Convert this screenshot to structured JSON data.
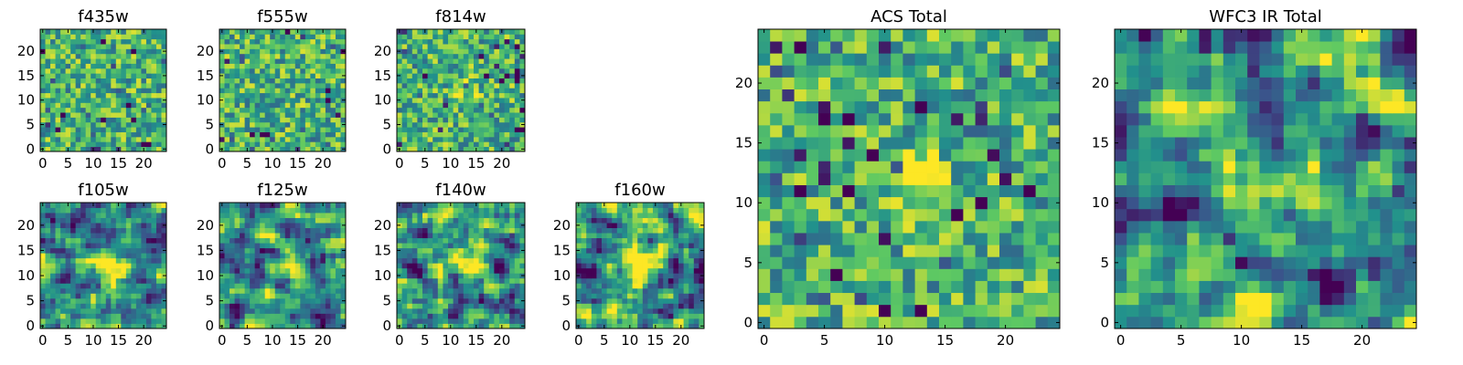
{
  "figure": {
    "background": "#ffffff",
    "colormap": "viridis",
    "colormap_stops": [
      "#440154",
      "#3b528b",
      "#21918c",
      "#5ec962",
      "#fde725"
    ]
  },
  "chart_data": [
    {
      "type": "heatmap",
      "title": "f435w",
      "grid_size": [
        25,
        25
      ],
      "xlim": [
        -0.5,
        24.5
      ],
      "ylim": [
        -0.5,
        24.5
      ],
      "xticks": [
        0,
        5,
        10,
        15,
        20
      ],
      "yticks": [
        0,
        5,
        10,
        15,
        20
      ],
      "colormap": "viridis",
      "texture": "noise",
      "features": []
    },
    {
      "type": "heatmap",
      "title": "f555w",
      "grid_size": [
        25,
        25
      ],
      "xlim": [
        -0.5,
        24.5
      ],
      "ylim": [
        -0.5,
        24.5
      ],
      "xticks": [
        0,
        5,
        10,
        15,
        20
      ],
      "yticks": [
        0,
        5,
        10,
        15,
        20
      ],
      "colormap": "viridis",
      "texture": "noise",
      "features": []
    },
    {
      "type": "heatmap",
      "title": "f814w",
      "grid_size": [
        25,
        25
      ],
      "xlim": [
        -0.5,
        24.5
      ],
      "ylim": [
        -0.5,
        24.5
      ],
      "xticks": [
        0,
        5,
        10,
        15,
        20
      ],
      "yticks": [
        0,
        5,
        10,
        15,
        20
      ],
      "colormap": "viridis",
      "texture": "noise",
      "features": [
        {
          "x": 13,
          "y": 12,
          "amp": 0.35,
          "r": 1.3
        }
      ]
    },
    {
      "type": "heatmap",
      "title": "f105w",
      "grid_size": [
        25,
        25
      ],
      "xlim": [
        -0.5,
        24.5
      ],
      "ylim": [
        -0.5,
        24.5
      ],
      "xticks": [
        0,
        5,
        10,
        15,
        20
      ],
      "yticks": [
        0,
        5,
        10,
        15,
        20
      ],
      "colormap": "viridis",
      "texture": "smooth",
      "features": [
        {
          "x": 12,
          "y": 12,
          "amp": 0.35,
          "r": 3
        }
      ]
    },
    {
      "type": "heatmap",
      "title": "f125w",
      "grid_size": [
        25,
        25
      ],
      "xlim": [
        -0.5,
        24.5
      ],
      "ylim": [
        -0.5,
        24.5
      ],
      "xticks": [
        0,
        5,
        10,
        15,
        20
      ],
      "yticks": [
        0,
        5,
        10,
        15,
        20
      ],
      "colormap": "viridis",
      "texture": "smooth",
      "features": [
        {
          "x": 13,
          "y": 12,
          "amp": 0.35,
          "r": 2.5
        }
      ]
    },
    {
      "type": "heatmap",
      "title": "f140w",
      "grid_size": [
        25,
        25
      ],
      "xlim": [
        -0.5,
        24.5
      ],
      "ylim": [
        -0.5,
        24.5
      ],
      "xticks": [
        0,
        5,
        10,
        15,
        20
      ],
      "yticks": [
        0,
        5,
        10,
        15,
        20
      ],
      "colormap": "viridis",
      "texture": "smooth",
      "features": [
        {
          "x": 12,
          "y": 12,
          "amp": 0.3,
          "r": 3
        },
        {
          "x": 4,
          "y": 11,
          "amp": -0.6,
          "r": 1
        }
      ]
    },
    {
      "type": "heatmap",
      "title": "f160w",
      "grid_size": [
        25,
        25
      ],
      "xlim": [
        -0.5,
        24.5
      ],
      "ylim": [
        -0.5,
        24.5
      ],
      "xticks": [
        0,
        5,
        10,
        15,
        20
      ],
      "yticks": [
        0,
        5,
        10,
        15,
        20
      ],
      "colormap": "viridis",
      "texture": "smooth",
      "features": [
        {
          "x": 12,
          "y": 11,
          "amp": 0.4,
          "r": 3
        },
        {
          "x": 3,
          "y": 11,
          "amp": -0.5,
          "r": 1
        }
      ]
    },
    {
      "type": "heatmap",
      "title": "ACS Total",
      "grid_size": [
        25,
        25
      ],
      "xlim": [
        -0.5,
        24.5
      ],
      "ylim": [
        -0.5,
        24.5
      ],
      "xticks": [
        0,
        5,
        10,
        15,
        20
      ],
      "yticks": [
        0,
        5,
        10,
        15,
        20
      ],
      "colormap": "viridis",
      "texture": "noise",
      "features": [
        {
          "x": 12.5,
          "y": 12,
          "amp": 0.45,
          "r": 1.6
        },
        {
          "x": 18,
          "y": 17,
          "amp": -0.7,
          "r": 0.6
        }
      ]
    },
    {
      "type": "heatmap",
      "title": "WFC3 IR Total",
      "grid_size": [
        25,
        25
      ],
      "xlim": [
        -0.5,
        24.5
      ],
      "ylim": [
        -0.5,
        24.5
      ],
      "xticks": [
        0,
        5,
        10,
        15,
        20
      ],
      "yticks": [
        0,
        5,
        10,
        15,
        20
      ],
      "colormap": "viridis",
      "texture": "smooth",
      "features": [
        {
          "x": 12,
          "y": 13,
          "amp": 0.4,
          "r": 3
        },
        {
          "x": 4.5,
          "y": 9.5,
          "amp": -0.9,
          "r": 1.2
        },
        {
          "x": 6.5,
          "y": 23.5,
          "amp": -0.7,
          "r": 0.7
        }
      ]
    }
  ]
}
